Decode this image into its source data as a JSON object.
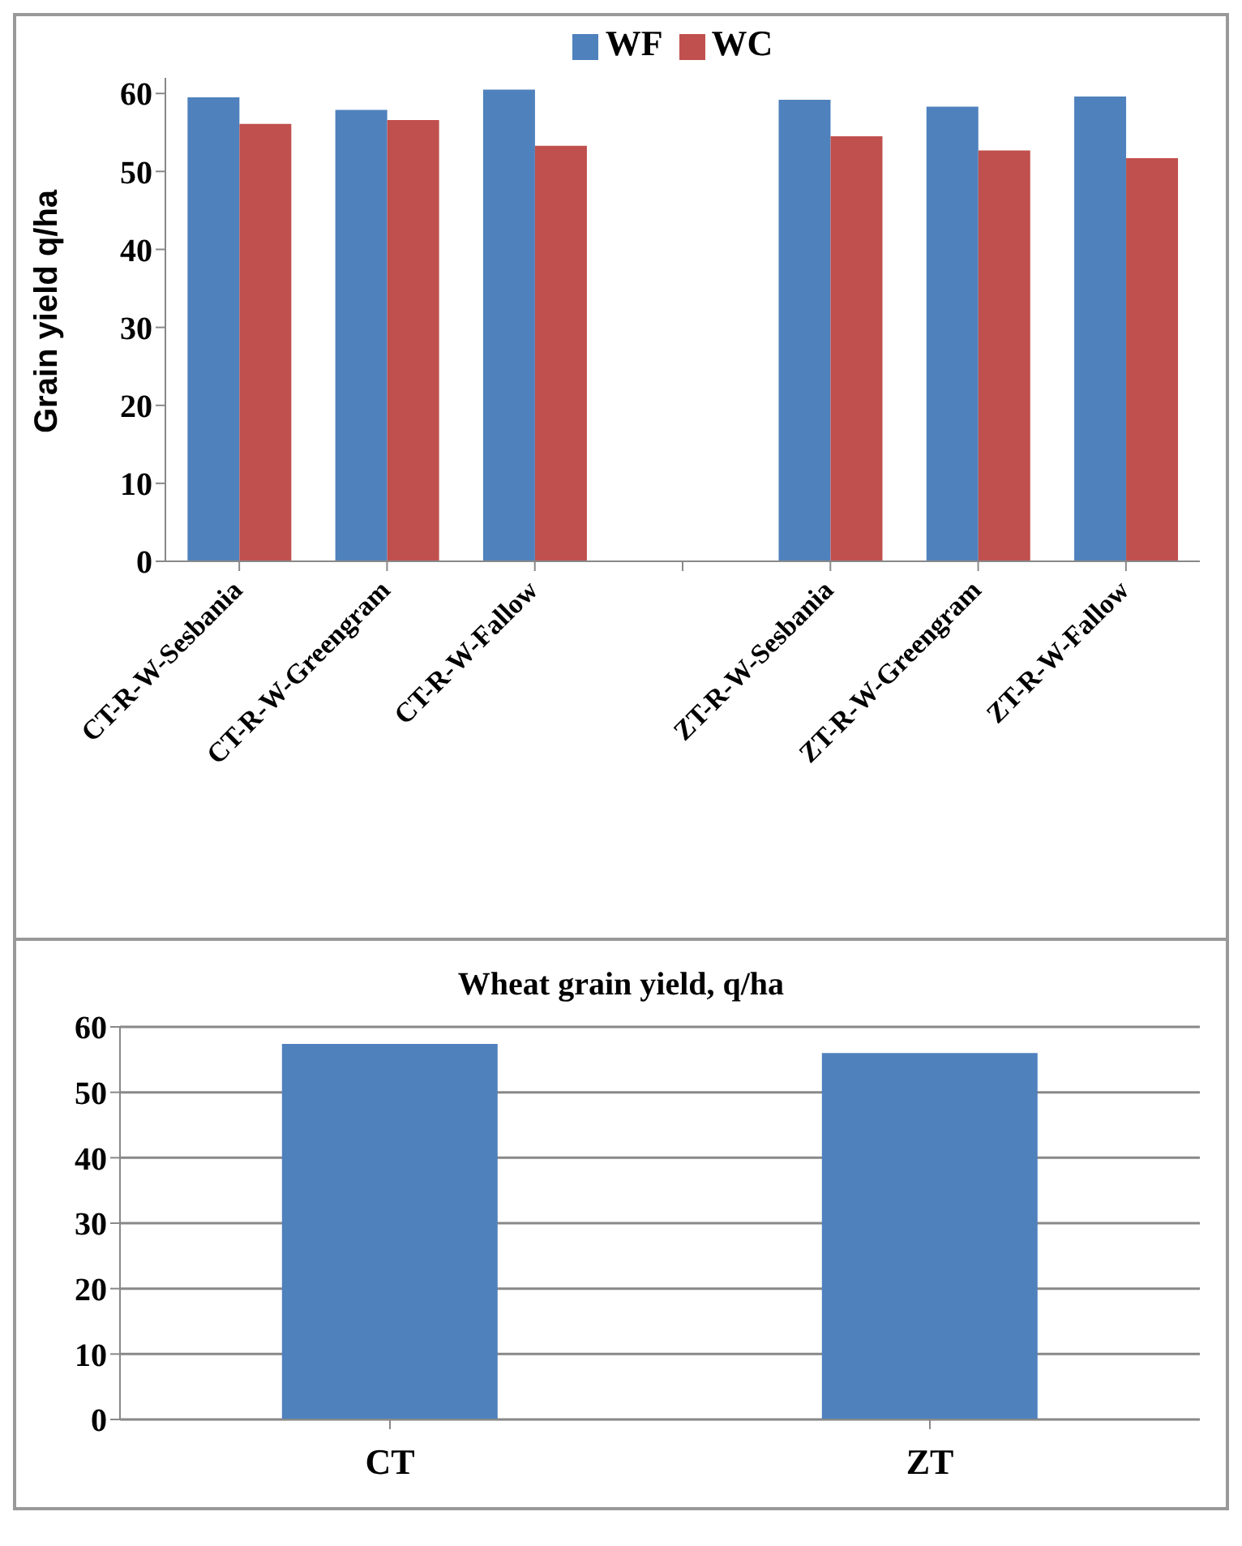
{
  "chart_data": [
    {
      "type": "bar",
      "ylabel": "Grain yield q/ha",
      "categories": [
        "CT-R-W-Sesbania",
        "CT-R-W-Greengram",
        "CT-R-W-Fallow",
        null,
        "ZT-R-W-Sesbania",
        "ZT-R-W-Greengram",
        "ZT-R-W-Fallow"
      ],
      "series": [
        {
          "name": "WF",
          "color": "#4f81bd",
          "values": [
            59.5,
            57.9,
            60.5,
            null,
            59.2,
            58.3,
            59.6
          ]
        },
        {
          "name": "WC",
          "color": "#c0504d",
          "values": [
            56.1,
            56.6,
            53.3,
            null,
            54.5,
            52.7,
            51.7
          ]
        }
      ],
      "ylim": [
        0,
        62
      ],
      "yticks": [
        0,
        10,
        20,
        30,
        40,
        50,
        60
      ],
      "grid": false,
      "legend": "top"
    },
    {
      "type": "bar",
      "title": "Wheat grain yield, q/ha",
      "categories": [
        "CT",
        "ZT"
      ],
      "values": [
        57.4,
        56.0
      ],
      "color": "#4f81bd",
      "ylim": [
        0,
        60
      ],
      "yticks": [
        0,
        10,
        20,
        30,
        40,
        50,
        60
      ],
      "grid": "y",
      "legend": false
    }
  ]
}
